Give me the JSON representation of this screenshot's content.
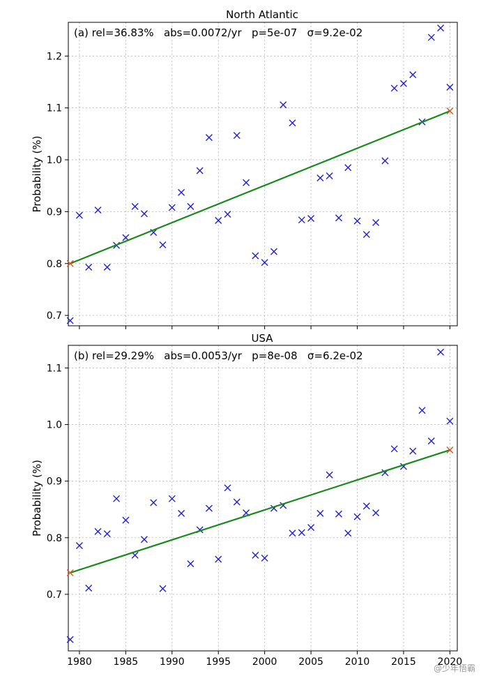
{
  "chart_data": [
    {
      "type": "scatter",
      "title": "North Atlantic",
      "annotation": "(a) rel=36.83%   abs=0.0072/yr   p=5e-07   σ=9.2e-02",
      "xlabel": "",
      "ylabel": "Probability (%)",
      "xlim": [
        1978.8,
        2020.8
      ],
      "ylim": [
        0.68,
        1.265
      ],
      "yticks": [
        0.7,
        0.8,
        0.9,
        1.0,
        1.1,
        1.2
      ],
      "ytick_labels": [
        "0.7",
        "0.8",
        "0.9",
        "1.0",
        "1.1",
        "1.2"
      ],
      "xticks": [
        1980,
        1985,
        1990,
        1995,
        2000,
        2005,
        2010,
        2015,
        2020
      ],
      "xtick_labels": [],
      "grid": true,
      "series": [
        {
          "name": "annual",
          "color": "#1f1fd6",
          "marker": "x",
          "x": [
            1979,
            1980,
            1981,
            1982,
            1983,
            1984,
            1985,
            1986,
            1987,
            1988,
            1989,
            1990,
            1991,
            1992,
            1993,
            1994,
            1995,
            1996,
            1997,
            1998,
            1999,
            2000,
            2001,
            2002,
            2003,
            2004,
            2005,
            2006,
            2007,
            2008,
            2009,
            2010,
            2011,
            2012,
            2013,
            2014,
            2015,
            2016,
            2017,
            2018,
            2019,
            2020
          ],
          "y": [
            0.69,
            0.893,
            0.793,
            0.903,
            0.793,
            0.835,
            0.85,
            0.91,
            0.896,
            0.86,
            0.836,
            0.908,
            0.937,
            0.91,
            0.979,
            1.043,
            0.883,
            0.895,
            1.047,
            0.956,
            0.815,
            0.802,
            0.823,
            1.106,
            1.071,
            0.884,
            0.887,
            0.965,
            0.969,
            0.888,
            0.985,
            0.882,
            0.856,
            0.879,
            0.998,
            1.138,
            1.147,
            1.164,
            1.073,
            1.236,
            1.254,
            1.14
          ]
        },
        {
          "name": "trend",
          "color": "#1a8a1a",
          "line": true,
          "x": [
            1979,
            2020
          ],
          "y": [
            0.8,
            1.094
          ]
        },
        {
          "name": "trend-endpoints",
          "color": "#d9541e",
          "marker": "x",
          "x": [
            1979,
            2020
          ],
          "y": [
            0.8,
            1.094
          ]
        }
      ]
    },
    {
      "type": "scatter",
      "title": "USA",
      "annotation": "(b) rel=29.29%   abs=0.0053/yr   p=8e-08   σ=6.2e-02",
      "xlabel": "",
      "ylabel": "Probability (%)",
      "xlim": [
        1978.8,
        2020.8
      ],
      "ylim": [
        0.6,
        1.14
      ],
      "yticks": [
        0.7,
        0.8,
        0.9,
        1.0,
        1.1
      ],
      "ytick_labels": [
        "0.7",
        "0.8",
        "0.9",
        "1.0",
        "1.1"
      ],
      "xticks": [
        1980,
        1985,
        1990,
        1995,
        2000,
        2005,
        2010,
        2015,
        2020
      ],
      "xtick_labels": [
        "1980",
        "1985",
        "1990",
        "1995",
        "2000",
        "2005",
        "2010",
        "2015",
        "2020"
      ],
      "grid": true,
      "series": [
        {
          "name": "annual",
          "color": "#1f1fd6",
          "marker": "x",
          "x": [
            1979,
            1980,
            1981,
            1982,
            1983,
            1984,
            1985,
            1986,
            1987,
            1988,
            1989,
            1990,
            1991,
            1992,
            1993,
            1994,
            1995,
            1996,
            1997,
            1998,
            1999,
            2000,
            2001,
            2002,
            2003,
            2004,
            2005,
            2006,
            2007,
            2008,
            2009,
            2010,
            2011,
            2012,
            2013,
            2014,
            2015,
            2016,
            2017,
            2018,
            2019,
            2020
          ],
          "y": [
            0.62,
            0.786,
            0.711,
            0.811,
            0.807,
            0.869,
            0.831,
            0.769,
            0.797,
            0.862,
            0.71,
            0.869,
            0.843,
            0.754,
            0.814,
            0.852,
            0.762,
            0.888,
            0.863,
            0.844,
            0.769,
            0.764,
            0.852,
            0.857,
            0.808,
            0.809,
            0.818,
            0.843,
            0.911,
            0.842,
            0.808,
            0.837,
            0.856,
            0.844,
            0.915,
            0.957,
            0.926,
            0.953,
            1.025,
            0.971,
            1.128,
            1.006
          ]
        },
        {
          "name": "trend",
          "color": "#1a8a1a",
          "line": true,
          "x": [
            1979,
            2020
          ],
          "y": [
            0.738,
            0.955
          ]
        },
        {
          "name": "trend-endpoints",
          "color": "#d9541e",
          "marker": "x",
          "x": [
            1979,
            2020
          ],
          "y": [
            0.738,
            0.955
          ]
        }
      ]
    }
  ],
  "watermark": "@少年悟霸"
}
